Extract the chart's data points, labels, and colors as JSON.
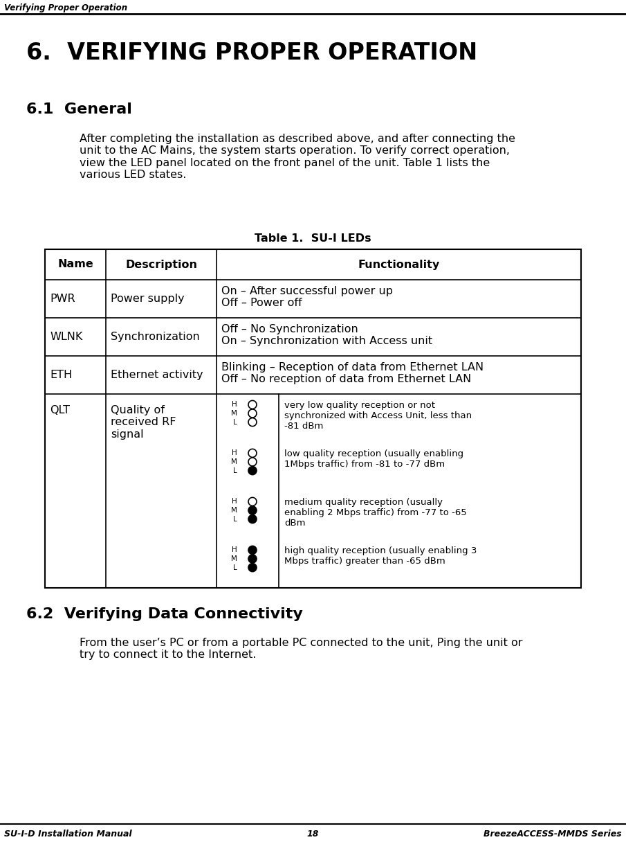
{
  "header_italic": "Verifying Proper Operation",
  "title_section": "6.  VERIFYING PROPER OPERATION",
  "subtitle_section": "6.1  General",
  "body_text": "After completing the installation as described above, and after connecting the\nunit to the AC Mains, the system starts operation. To verify correct operation,\nview the LED panel located on the front panel of the unit. Table 1 lists the\nvarious LED states.",
  "table_title": "Table 1.  SU-I LEDs",
  "table_headers": [
    "Name",
    "Description",
    "Functionality"
  ],
  "table_rows": [
    {
      "name": "PWR",
      "desc": "Power supply",
      "func": "On – After successful power up\nOff – Power off"
    },
    {
      "name": "WLNK",
      "desc": "Synchronization",
      "func": "Off – No Synchronization\nOn – Synchronization with Access unit"
    },
    {
      "name": "ETH",
      "desc": "Ethernet activity",
      "func": "Blinking – Reception of data from Ethernet LAN\nOff – No reception of data from Ethernet LAN"
    },
    {
      "name": "QLT",
      "desc": "Quality of\nreceived RF\nsignal",
      "func_leds": [
        {
          "h": false,
          "m": false,
          "l": false,
          "text": "very low quality reception or not\nsynchronized with Access Unit, less than\n-81 dBm"
        },
        {
          "h": false,
          "m": false,
          "l": true,
          "text": "low quality reception (usually enabling\n1Mbps traffic) from -81 to -77 dBm"
        },
        {
          "h": false,
          "m": true,
          "l": true,
          "text": "medium quality reception (usually\nenabling 2 Mbps traffic) from -77 to -65\ndBm"
        },
        {
          "h": true,
          "m": true,
          "l": true,
          "text": "high quality reception (usually enabling 3\nMbps traffic) greater than -65 dBm"
        }
      ]
    }
  ],
  "section2_title": "6.2  Verifying Data Connectivity",
  "section2_text": "From the user’s PC or from a portable PC connected to the unit, Ping the unit or\ntry to connect it to the Internet.",
  "footer_left": "SU-I-D Installation Manual",
  "footer_center": "18",
  "footer_right": "BreezeACCESS-MMDS Series",
  "bg_color": "#ffffff",
  "text_color": "#000000"
}
